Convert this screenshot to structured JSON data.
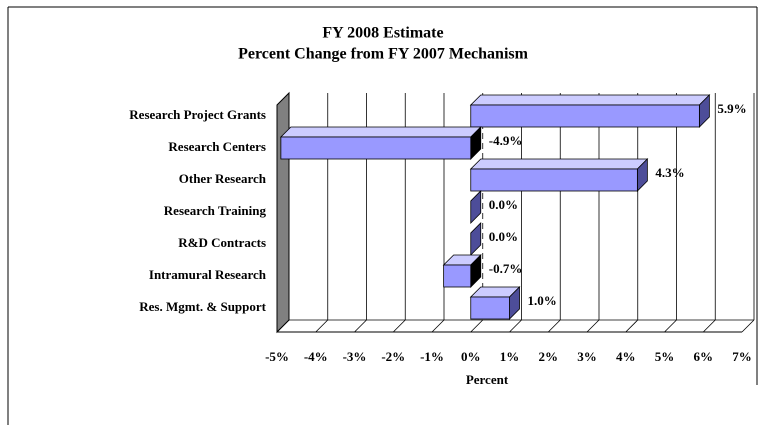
{
  "chart_data": {
    "type": "bar3d_horizontal",
    "title": [
      "FY 2008 Estimate",
      "Percent Change from FY 2007 Mechanism"
    ],
    "xlabel": "Percent",
    "categories": [
      "Research Project Grants",
      "Research Centers",
      "Other Research",
      "Research Training",
      "R&D Contracts",
      "Intramural Research",
      "Res. Mgmt. & Support"
    ],
    "values": [
      5.9,
      -4.9,
      4.3,
      0.0,
      0.0,
      -0.7,
      1.0
    ],
    "value_labels": [
      "5.9%",
      "-4.9%",
      "4.3%",
      "0.0%",
      "0.0%",
      "-0.7%",
      "1.0%"
    ],
    "color": "#9999ff",
    "xlim": [
      -5,
      7
    ],
    "xticks": [
      {
        "value": -5,
        "label": "-5%"
      },
      {
        "value": -4,
        "label": "-4%"
      },
      {
        "value": -3,
        "label": "-3%"
      },
      {
        "value": -2,
        "label": "-2%"
      },
      {
        "value": -1,
        "label": "-1%"
      },
      {
        "value": 0,
        "label": "0%"
      },
      {
        "value": 1,
        "label": "1%"
      },
      {
        "value": 2,
        "label": "2%"
      },
      {
        "value": 3,
        "label": "3%"
      },
      {
        "value": 4,
        "label": "4%"
      },
      {
        "value": 5,
        "label": "5%"
      },
      {
        "value": 6,
        "label": "6%"
      },
      {
        "value": 7,
        "label": "7%"
      }
    ],
    "grid": true
  }
}
